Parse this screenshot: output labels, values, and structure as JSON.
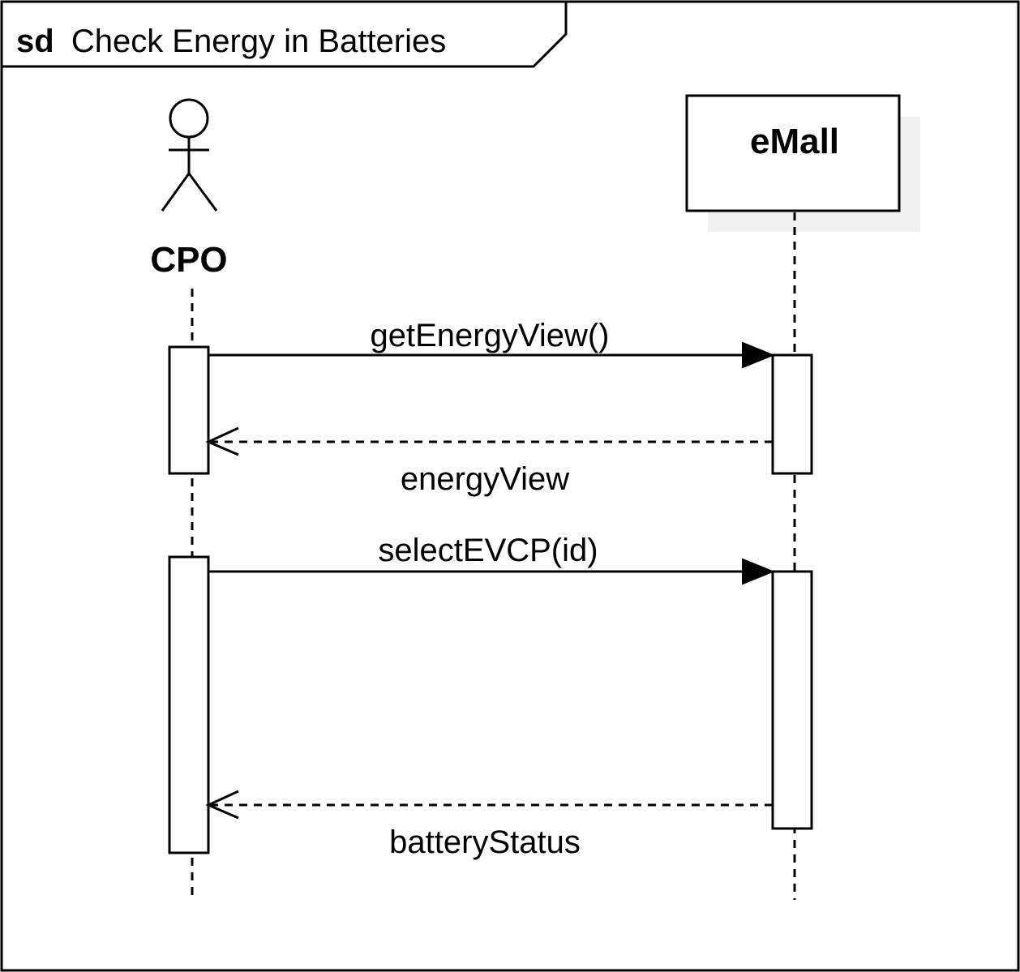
{
  "frame": {
    "keyword": "sd",
    "title": "Check Energy in Batteries"
  },
  "participants": {
    "actor": {
      "name": "CPO"
    },
    "system": {
      "name": "eMall"
    }
  },
  "messages": [
    {
      "label": "getEnergyView()",
      "kind": "synchronous-call",
      "from": "CPO",
      "to": "eMall"
    },
    {
      "label": "energyView",
      "kind": "reply",
      "from": "eMall",
      "to": "CPO"
    },
    {
      "label": "selectEVCP(id)",
      "kind": "synchronous-call",
      "from": "CPO",
      "to": "eMall"
    },
    {
      "label": "batteryStatus",
      "kind": "reply",
      "from": "eMall",
      "to": "CPO"
    }
  ],
  "colors": {
    "stroke": "#000000",
    "shadow": "#f0f0f0",
    "background": "#ffffff"
  }
}
